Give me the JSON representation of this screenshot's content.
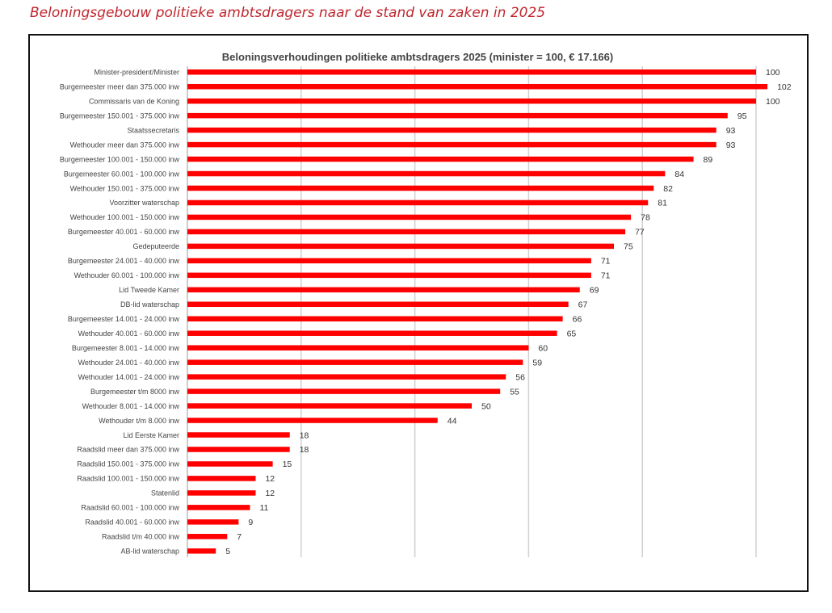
{
  "caption": "Beloningsgebouw politieke ambtsdragers naar de stand van zaken in 2025",
  "chart_data": {
    "type": "bar",
    "orientation": "horizontal",
    "title": "Beloningsverhoudingen politieke ambtsdragers 2025 (minister = 100, € 17.166)",
    "xlim": [
      0,
      100
    ],
    "grid": true,
    "bar_color": "#ff0000",
    "categories": [
      "Minister-president/Minister",
      "Burgemeester meer dan 375.000 inw",
      "Commissaris van de Koning",
      "Burgemeester 150.001 - 375.000 inw",
      "Staatssecretaris",
      "Wethouder meer dan 375.000 inw",
      "Burgemeester 100.001 - 150.000 inw",
      "Burgemeester 60.001 - 100.000 inw",
      "Wethouder 150.001 - 375.000 inw",
      "Voorzitter waterschap",
      "Wethouder 100.001 - 150.000 inw",
      "Burgemeester 40.001 - 60.000 inw",
      "Gedeputeerde",
      "Burgemeester 24.001 - 40.000 inw",
      "Wethouder 60.001 - 100.000 inw",
      "Lid Tweede Kamer",
      "DB-lid waterschap",
      "Burgemeester 14.001 - 24.000 inw",
      "Wethouder 40.001 - 60.000 inw",
      "Burgemeester 8.001 - 14.000 inw",
      "Wethouder 24.001 - 40.000 inw",
      "Wethouder 14.001 - 24.000 inw",
      "Burgemeester t/m 8000 inw",
      "Wethouder 8.001 - 14.000 inw",
      "Wethouder t/m 8.000 inw",
      "Lid Eerste Kamer",
      "Raadslid meer dan 375.000 inw",
      "Raadslid 150.001 - 375.000 inw",
      "Raadslid 100.001 - 150.000 inw",
      "Statenlid",
      "Raadslid 60.001 - 100.000 inw",
      "Raadslid 40.001 - 60.000 inw",
      "Raadslid t/m 40.000 inw",
      "AB-lid waterschap"
    ],
    "values": [
      100,
      102,
      100,
      95,
      93,
      93,
      89,
      84,
      82,
      81,
      78,
      77,
      75,
      71,
      71,
      69,
      67,
      66,
      65,
      60,
      59,
      56,
      55,
      50,
      44,
      18,
      18,
      15,
      12,
      12,
      11,
      9,
      7,
      5
    ]
  }
}
